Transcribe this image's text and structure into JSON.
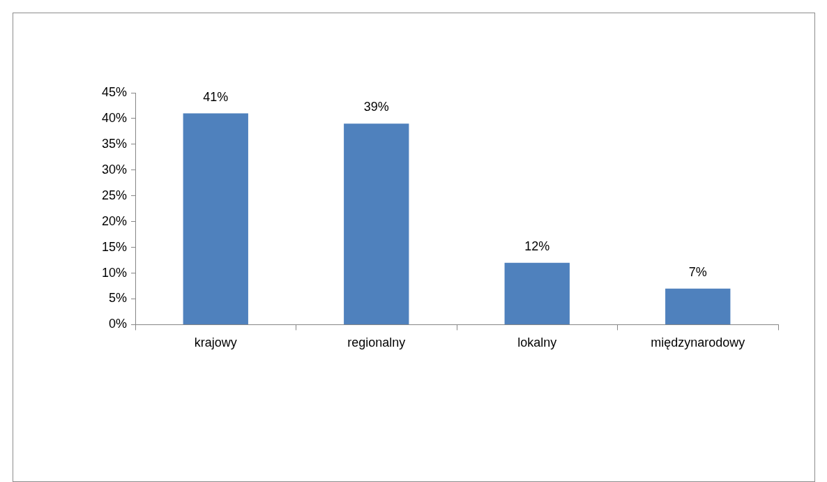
{
  "chart_data": {
    "type": "bar",
    "categories": [
      "krajowy",
      "regionalny",
      "lokalny",
      "międzynarodowy"
    ],
    "values": [
      41,
      39,
      12,
      7
    ],
    "color": "#4f81bd",
    "value_labels": [
      "41%",
      "39%",
      "12%",
      "7%"
    ],
    "ylim": [
      0,
      45
    ],
    "yticks": [
      {
        "value": 0,
        "label": "0%"
      },
      {
        "value": 5,
        "label": "5%"
      },
      {
        "value": 10,
        "label": "10%"
      },
      {
        "value": 15,
        "label": "15%"
      },
      {
        "value": 20,
        "label": "20%"
      },
      {
        "value": 25,
        "label": "25%"
      },
      {
        "value": 30,
        "label": "30%"
      },
      {
        "value": 35,
        "label": "35%"
      },
      {
        "value": 40,
        "label": "40%"
      },
      {
        "value": 45,
        "label": "45%"
      }
    ],
    "grid": false,
    "legend": false
  }
}
